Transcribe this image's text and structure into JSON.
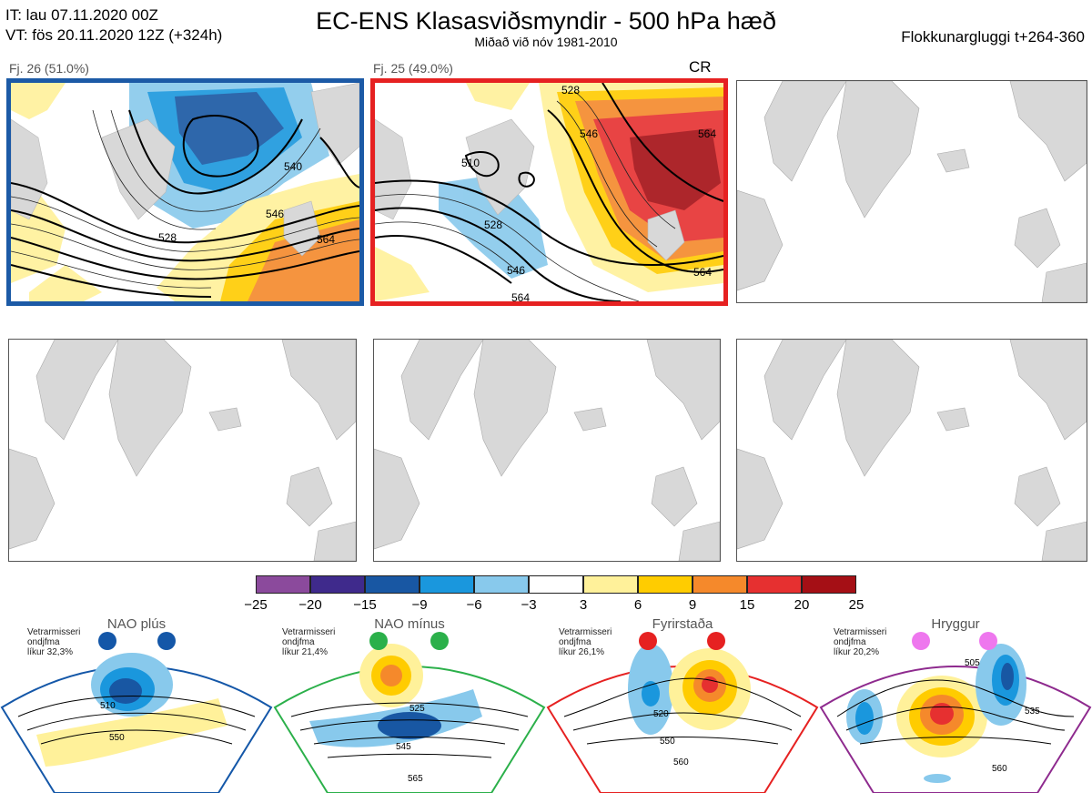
{
  "header": {
    "init_time": "IT: lau 07.11.2020 00Z",
    "valid_time": "VT: fös 20.11.2020 12Z  (+324h)",
    "title": "EC-ENS Klasasviðsmyndir - 500 hPa hæð",
    "subtitle": "Miðað við nóv 1981-2010",
    "window": "Flokkunargluggi t+264-360"
  },
  "clusters": [
    {
      "label": "Fj. 26 (51.0%)",
      "border_color": "#1c5aa6",
      "contours": [
        "528",
        "546",
        "564",
        "528",
        "546",
        "564",
        "540"
      ]
    },
    {
      "label": "Fj. 25 (49.0%)",
      "border_color": "#e62121",
      "tag": "CR",
      "contours": [
        "510",
        "528",
        "546",
        "564",
        "546",
        "528",
        "564",
        "564"
      ]
    }
  ],
  "empty_panels": 4,
  "colorbar": {
    "colors": [
      "#8b4a9c",
      "#3f2a8c",
      "#1857a3",
      "#1a97dd",
      "#88c9ec",
      "#ffffff",
      "#fff19a",
      "#ffcc00",
      "#f5892b",
      "#e63030",
      "#a50f15"
    ],
    "ticks": [
      "−25",
      "−20",
      "−15",
      "−9",
      "−6",
      "−3",
      "3",
      "6",
      "9",
      "15",
      "20",
      "25"
    ]
  },
  "regimes": [
    {
      "name": "NAO plús",
      "dot_color": "#1457a8",
      "border_color": "#1457a8",
      "note": [
        "Vetrarmisseri",
        "ondjfma",
        "líkur 32,3%"
      ],
      "contours": [
        "510",
        "550"
      ]
    },
    {
      "name": "NAO mínus",
      "dot_color": "#2bb04a",
      "border_color": "#2bb04a",
      "note": [
        "Vetrarmisseri",
        "ondjfma",
        "líkur 21,4%"
      ],
      "contours": [
        "525",
        "545",
        "565"
      ]
    },
    {
      "name": "Fyrirstaða",
      "dot_color": "#e62121",
      "border_color": "#e62121",
      "note": [
        "Vetrarmisseri",
        "ondjfma",
        "líkur 26,1%"
      ],
      "contours": [
        "520",
        "550",
        "560"
      ]
    },
    {
      "name": "Hryggur",
      "dot_color": "#ee77ee",
      "border_color": "#8e2a8e",
      "note": [
        "Vetrarmisseri",
        "ondjfma",
        "líkur 20,2%"
      ],
      "contours": [
        "505",
        "535",
        "560"
      ]
    }
  ]
}
